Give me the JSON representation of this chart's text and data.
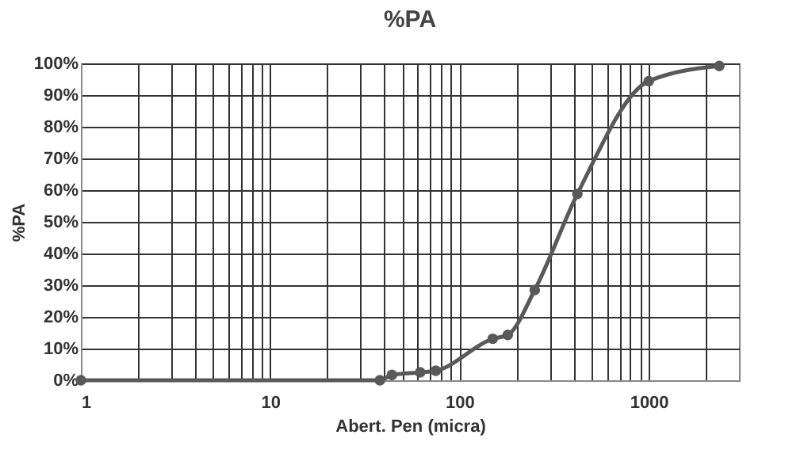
{
  "chart_data": {
    "type": "line",
    "title": "%PA",
    "xlabel": "Abert. Pen (micra)",
    "ylabel": "%PA",
    "log": "x",
    "grid": true,
    "marker": "circle",
    "line_style": "solid",
    "legend": false,
    "x": [
      1,
      38,
      44,
      62,
      75,
      150,
      180,
      250,
      420,
      1000,
      2360
    ],
    "series": [
      {
        "color": "#595959",
        "values": [
          0,
          0,
          1.7,
          2.5,
          3,
          13.1,
          14.3,
          28.5,
          58.8,
          94.4,
          99.2
        ]
      }
    ],
    "xlim": [
      1,
      3000
    ],
    "xticks": [
      1,
      {
        "value": 2,
        "label": null
      },
      {
        "value": 3,
        "label": null
      },
      {
        "value": 4,
        "label": null
      },
      {
        "value": 5,
        "label": null
      },
      {
        "value": 6,
        "label": null
      },
      {
        "value": 7,
        "label": null
      },
      {
        "value": 8,
        "label": null
      },
      {
        "value": 9,
        "label": null
      },
      10,
      {
        "value": 20,
        "label": null
      },
      {
        "value": 30,
        "label": null
      },
      {
        "value": 40,
        "label": null
      },
      {
        "value": 50,
        "label": null
      },
      {
        "value": 60,
        "label": null
      },
      {
        "value": 70,
        "label": null
      },
      {
        "value": 80,
        "label": null
      },
      {
        "value": 90,
        "label": null
      },
      100,
      {
        "value": 200,
        "label": null
      },
      {
        "value": 300,
        "label": null
      },
      {
        "value": 400,
        "label": null
      },
      {
        "value": 500,
        "label": null
      },
      {
        "value": 600,
        "label": null
      },
      {
        "value": 700,
        "label": null
      },
      {
        "value": 800,
        "label": null
      },
      {
        "value": 900,
        "label": null
      },
      1000,
      {
        "value": 2000,
        "label": null
      }
    ],
    "ylim": [
      0,
      100
    ],
    "yticks": [
      {
        "value": 0,
        "label": "0%"
      },
      {
        "value": 10,
        "label": "10%"
      },
      {
        "value": 20,
        "label": "20%"
      },
      {
        "value": 30,
        "label": "30%"
      },
      {
        "value": 40,
        "label": "40%"
      },
      {
        "value": 50,
        "label": "50%"
      },
      {
        "value": 60,
        "label": "60%"
      },
      {
        "value": 70,
        "label": "70%"
      },
      {
        "value": 80,
        "label": "80%"
      },
      {
        "value": 90,
        "label": "90%"
      },
      {
        "value": 100,
        "label": "100%"
      }
    ]
  }
}
